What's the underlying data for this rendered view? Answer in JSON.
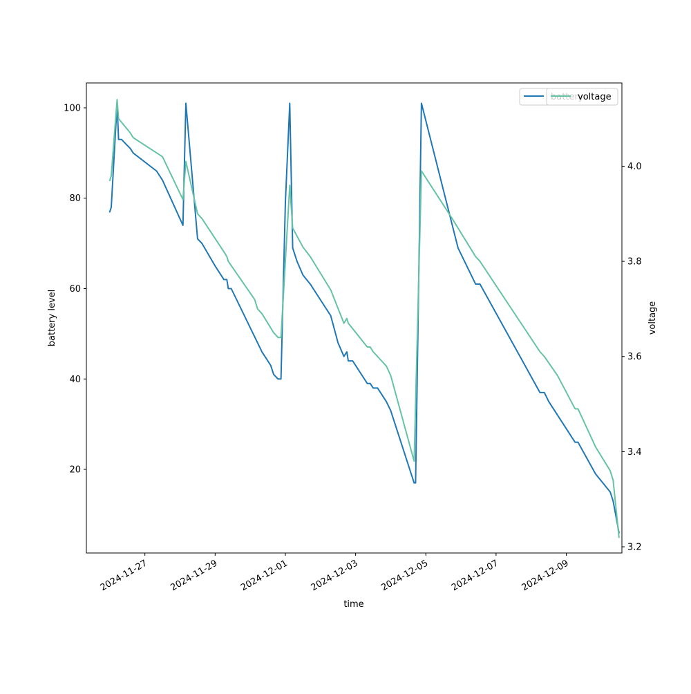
{
  "chart_data": {
    "type": "line",
    "xlabel": "time",
    "ylabel_left": "battery level",
    "ylabel_right": "voltage",
    "x_ticks": [
      "2024-11-27",
      "2024-11-29",
      "2024-12-01",
      "2024-12-03",
      "2024-12-05",
      "2024-12-07",
      "2024-12-09"
    ],
    "y_ticks_left": [
      "20",
      "40",
      "60",
      "80",
      "100"
    ],
    "y_ticks_right": [
      "3.2",
      "3.4",
      "3.6",
      "3.8",
      "4.0"
    ],
    "xlim": [
      "2024-11-25T08:00",
      "2024-12-10T14:00"
    ],
    "ylim_left": [
      1.5,
      105.5
    ],
    "ylim_right": [
      3.187,
      4.175
    ],
    "legends": [
      {
        "entries": [
          "battery"
        ],
        "location": "top-right"
      },
      {
        "entries": [
          "voltage"
        ],
        "location": "top-right"
      }
    ],
    "series": [
      {
        "name": "battery",
        "axis": "left",
        "color": "#1f77b4",
        "points": [
          [
            "2024-11-26T00:00",
            77
          ],
          [
            "2024-11-26T01:00",
            78
          ],
          [
            "2024-11-26T05:00",
            101
          ],
          [
            "2024-11-26T06:00",
            93
          ],
          [
            "2024-11-26T08:00",
            93
          ],
          [
            "2024-11-26T11:00",
            92
          ],
          [
            "2024-11-26T14:00",
            91
          ],
          [
            "2024-11-26T16:00",
            90
          ],
          [
            "2024-11-27T08:00",
            86
          ],
          [
            "2024-11-27T12:00",
            84
          ],
          [
            "2024-11-28T02:00",
            74
          ],
          [
            "2024-11-28T04:00",
            101
          ],
          [
            "2024-11-28T12:00",
            71
          ],
          [
            "2024-11-28T15:00",
            70
          ],
          [
            "2024-11-29T00:00",
            65
          ],
          [
            "2024-11-29T06:00",
            62
          ],
          [
            "2024-11-29T08:00",
            62
          ],
          [
            "2024-11-29T09:00",
            60
          ],
          [
            "2024-11-29T11:00",
            60
          ],
          [
            "2024-11-30T05:00",
            48
          ],
          [
            "2024-11-30T08:00",
            46
          ],
          [
            "2024-11-30T14:00",
            43
          ],
          [
            "2024-11-30T16:00",
            41
          ],
          [
            "2024-11-30T19:00",
            40
          ],
          [
            "2024-11-30T21:00",
            40
          ],
          [
            "2024-12-01T00:00",
            79
          ],
          [
            "2024-12-01T03:00",
            101
          ],
          [
            "2024-12-01T05:00",
            69
          ],
          [
            "2024-12-01T08:00",
            66
          ],
          [
            "2024-12-01T12:00",
            63
          ],
          [
            "2024-12-01T17:00",
            61
          ],
          [
            "2024-12-02T01:00",
            57
          ],
          [
            "2024-12-02T07:00",
            54
          ],
          [
            "2024-12-02T12:00",
            48
          ],
          [
            "2024-12-02T16:00",
            45
          ],
          [
            "2024-12-02T18:00",
            46
          ],
          [
            "2024-12-02T19:00",
            44
          ],
          [
            "2024-12-02T22:00",
            44
          ],
          [
            "2024-12-03T08:00",
            39
          ],
          [
            "2024-12-03T10:00",
            39
          ],
          [
            "2024-12-03T12:00",
            38
          ],
          [
            "2024-12-03T15:00",
            38
          ],
          [
            "2024-12-03T21:00",
            35
          ],
          [
            "2024-12-04T00:00",
            33
          ],
          [
            "2024-12-04T16:00",
            17
          ],
          [
            "2024-12-04T17:00",
            17
          ],
          [
            "2024-12-04T21:00",
            101
          ],
          [
            "2024-12-05T22:00",
            69
          ],
          [
            "2024-12-06T10:00",
            61
          ],
          [
            "2024-12-06T13:00",
            61
          ],
          [
            "2024-12-08T06:00",
            37
          ],
          [
            "2024-12-08T09:00",
            37
          ],
          [
            "2024-12-08T12:00",
            35
          ],
          [
            "2024-12-08T18:00",
            32
          ],
          [
            "2024-12-09T06:00",
            26
          ],
          [
            "2024-12-09T08:00",
            26
          ],
          [
            "2024-12-09T20:00",
            19
          ],
          [
            "2024-12-10T06:00",
            15
          ],
          [
            "2024-12-10T08:00",
            13
          ],
          [
            "2024-12-10T12:00",
            6
          ]
        ]
      },
      {
        "name": "voltage",
        "axis": "right",
        "color": "#66c2a5",
        "points": [
          [
            "2024-11-26T00:00",
            3.97
          ],
          [
            "2024-11-26T01:00",
            3.98
          ],
          [
            "2024-11-26T05:00",
            4.14
          ],
          [
            "2024-11-26T06:00",
            4.1
          ],
          [
            "2024-11-26T14:00",
            4.07
          ],
          [
            "2024-11-26T16:00",
            4.06
          ],
          [
            "2024-11-27T12:00",
            4.02
          ],
          [
            "2024-11-28T02:00",
            3.93
          ],
          [
            "2024-11-28T04:00",
            4.01
          ],
          [
            "2024-11-28T12:00",
            3.9
          ],
          [
            "2024-11-28T15:00",
            3.89
          ],
          [
            "2024-11-29T06:00",
            3.82
          ],
          [
            "2024-11-29T08:00",
            3.81
          ],
          [
            "2024-11-29T09:00",
            3.8
          ],
          [
            "2024-11-30T03:00",
            3.72
          ],
          [
            "2024-11-30T05:00",
            3.7
          ],
          [
            "2024-11-30T08:00",
            3.69
          ],
          [
            "2024-11-30T14:00",
            3.66
          ],
          [
            "2024-11-30T16:00",
            3.65
          ],
          [
            "2024-11-30T19:00",
            3.64
          ],
          [
            "2024-11-30T21:00",
            3.64
          ],
          [
            "2024-12-01T03:00",
            3.96
          ],
          [
            "2024-12-01T05:00",
            3.87
          ],
          [
            "2024-12-01T12:00",
            3.83
          ],
          [
            "2024-12-01T17:00",
            3.81
          ],
          [
            "2024-12-02T07:00",
            3.74
          ],
          [
            "2024-12-02T16:00",
            3.67
          ],
          [
            "2024-12-02T18:00",
            3.68
          ],
          [
            "2024-12-02T19:00",
            3.67
          ],
          [
            "2024-12-03T08:00",
            3.62
          ],
          [
            "2024-12-03T10:00",
            3.62
          ],
          [
            "2024-12-03T12:00",
            3.61
          ],
          [
            "2024-12-03T21:00",
            3.58
          ],
          [
            "2024-12-04T00:00",
            3.56
          ],
          [
            "2024-12-04T16:00",
            3.38
          ],
          [
            "2024-12-04T21:00",
            3.99
          ],
          [
            "2024-12-05T18:00",
            3.89
          ],
          [
            "2024-12-06T10:00",
            3.81
          ],
          [
            "2024-12-06T13:00",
            3.8
          ],
          [
            "2024-12-08T06:00",
            3.61
          ],
          [
            "2024-12-08T09:00",
            3.6
          ],
          [
            "2024-12-08T18:00",
            3.56
          ],
          [
            "2024-12-09T06:00",
            3.49
          ],
          [
            "2024-12-09T08:00",
            3.49
          ],
          [
            "2024-12-09T20:00",
            3.41
          ],
          [
            "2024-12-10T06:00",
            3.36
          ],
          [
            "2024-12-10T08:00",
            3.34
          ],
          [
            "2024-12-10T12:00",
            3.22
          ]
        ]
      }
    ]
  }
}
